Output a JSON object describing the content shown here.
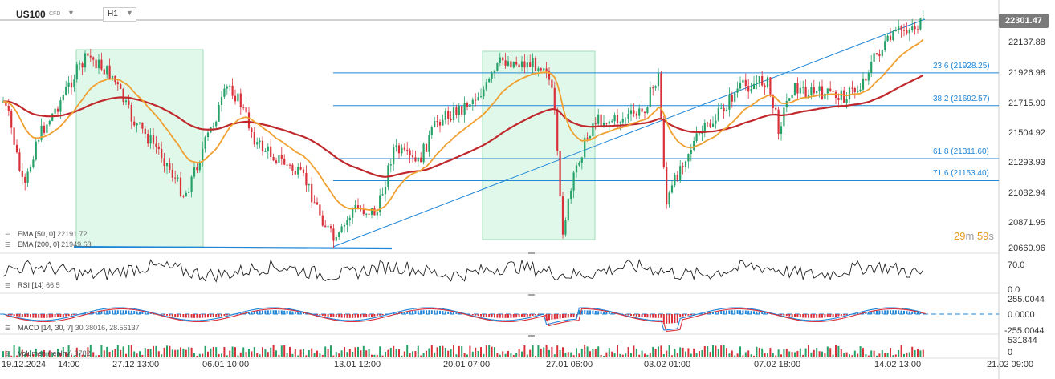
{
  "header": {
    "symbol": "US100",
    "instrument_type": "CFD",
    "timeframe": "H1",
    "current_price": "22301.47"
  },
  "price_axis": {
    "ticks": [
      "22137.88",
      "21926.98",
      "21715.90",
      "21504.92",
      "21293.93",
      "21082.94",
      "20871.95",
      "20660.96"
    ]
  },
  "fibonacci": [
    {
      "label": "23.6 (21928.25)",
      "value": 21928.25
    },
    {
      "label": "38.2 (21692.57)",
      "value": 21692.57
    },
    {
      "label": "61.8 (21311.60)",
      "value": 21311.6
    },
    {
      "label": "71.6 (21153.40)",
      "value": 21153.4
    }
  ],
  "timer": {
    "minutes": "29",
    "m_unit": "m",
    "seconds": "59",
    "s_unit": "s"
  },
  "indicators": {
    "ema50": {
      "name": "EMA",
      "params": "[50, 0]",
      "value": "22191.72",
      "color": "#f0a030"
    },
    "ema200": {
      "name": "EMA",
      "params": "[200, 0]",
      "value": "21949.63",
      "color": "#c0282c"
    },
    "rsi": {
      "name": "RSI",
      "params": "[14]",
      "value": "66.5",
      "axis": [
        "70.0",
        "0.0"
      ]
    },
    "macd": {
      "name": "MACD",
      "params": "[14, 30, 7]",
      "value1": "30.38016",
      "value2": "28.56137",
      "axis": [
        "255.0044",
        "0.0000",
        "-255.0044"
      ]
    },
    "volume": {
      "name": "Volumen",
      "params": "(realny)",
      "value": "3782",
      "axis": [
        "531844",
        "0"
      ]
    }
  },
  "time_axis": {
    "labels": [
      "19.12.2024",
      "14:00",
      "27.12 13:00",
      "06.01 10:00",
      "13.01 12:00",
      "20.01 07:00",
      "27.01 06:00",
      "03.02 01:00",
      "07.02 18:00",
      "14.02 13:00",
      "21.02 09:00"
    ]
  },
  "colors": {
    "bull": "#26a269",
    "bear": "#d9303a",
    "fib": "#1f86d8",
    "zone": "#d6f5e3",
    "ema50": "#f0a030",
    "ema200": "#c0282c"
  }
}
